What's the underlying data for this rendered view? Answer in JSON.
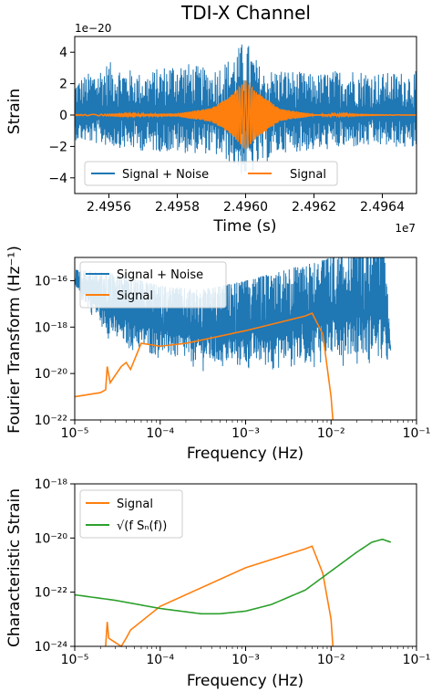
{
  "colors": {
    "blue": "#1f77b4",
    "orange": "#ff7f0e",
    "green": "#2ca02c"
  },
  "chart_data": [
    {
      "type": "line",
      "title": "TDI-X Channel",
      "xlabel": "Time (s)",
      "ylabel": "Strain",
      "x_offset_label": "1e7",
      "y_offset_label": "1e−20",
      "xlim": [
        2.4955,
        2.4965
      ],
      "ylim": [
        -5,
        5
      ],
      "x_ticks": [
        "2.4956",
        "2.4958",
        "2.4960",
        "2.4962",
        "2.4964"
      ],
      "x_tick_values": [
        2.4956,
        2.4958,
        2.496,
        2.4962,
        2.4964
      ],
      "y_ticks": [
        "−4",
        "−2",
        "0",
        "2",
        "4"
      ],
      "y_tick_values": [
        -4,
        -2,
        0,
        2,
        4
      ],
      "legend_position": "lower-center",
      "series": [
        {
          "name": "Signal + Noise",
          "color": "#1f77b4",
          "noise_amplitude": 1.4,
          "peak_range": [
            -4.1,
            4.9
          ],
          "x": [
            2.4955,
            2.4956,
            2.4957,
            2.4958,
            2.4959,
            2.49595,
            2.496,
            2.49605,
            2.4961,
            2.4962,
            2.4963,
            2.4964,
            2.4965
          ],
          "y_max": [
            2.2,
            3.4,
            2.6,
            3.5,
            2.9,
            3.6,
            4.9,
            2.8,
            3.0,
            2.6,
            3.0,
            2.7,
            2.8
          ],
          "y_min": [
            -1.6,
            -2.0,
            -2.3,
            -2.4,
            -2.5,
            -3.0,
            -4.1,
            -3.2,
            -2.4,
            -2.3,
            -2.1,
            -2.0,
            -2.2
          ]
        },
        {
          "name": "Signal",
          "color": "#ff7f0e",
          "x": [
            2.4955,
            2.4958,
            2.4959,
            2.49595,
            2.496,
            2.49603,
            2.4961,
            2.4962,
            2.4965
          ],
          "y_envelope": [
            0.03,
            0.1,
            0.45,
            1.1,
            2.2,
            1.5,
            0.4,
            0.05,
            0.0
          ]
        }
      ]
    },
    {
      "type": "line",
      "xlabel": "Frequency (Hz)",
      "ylabel": "Fourier Transform (Hz⁻¹)",
      "x_scale": "log",
      "y_scale": "log",
      "xlim": [
        1e-05,
        0.1
      ],
      "ylim": [
        1e-22,
        1e-15
      ],
      "x_ticks": [
        "10⁻⁵",
        "10⁻⁴",
        "10⁻³",
        "10⁻²",
        "10⁻¹"
      ],
      "x_tick_values": [
        1e-05,
        0.0001,
        0.001,
        0.01,
        0.1
      ],
      "y_ticks": [
        "10⁻²²",
        "10⁻²⁰",
        "10⁻¹⁸",
        "10⁻¹⁶"
      ],
      "y_tick_values": [
        1e-22,
        1e-20,
        1e-18,
        1e-16
      ],
      "legend_position": "upper-left",
      "series": [
        {
          "name": "Signal + Noise",
          "color": "#1f77b4",
          "x": [
            1e-05,
            3e-05,
            0.0001,
            0.0003,
            0.001,
            0.003,
            0.01,
            0.02,
            0.04,
            0.045,
            0.05
          ],
          "y_top": [
            3e-16,
            2e-16,
            6e-17,
            4e-17,
            1e-16,
            3e-16,
            1e-15,
            3e-15,
            6e-15,
            1e-16,
            1e-19
          ],
          "y_bottom": [
            3e-17,
            1e-19,
            3e-20,
            1e-20,
            8e-21,
            1e-20,
            2e-20,
            2e-20,
            1e-20,
            1e-20,
            1e-19
          ]
        },
        {
          "name": "Signal",
          "color": "#ff7f0e",
          "x": [
            1e-05,
            2e-05,
            2.3e-05,
            2.4e-05,
            2.6e-05,
            3.5e-05,
            4e-05,
            4.5e-05,
            6e-05,
            0.0001,
            0.0002,
            0.001,
            0.005,
            0.006,
            0.008,
            0.01,
            0.0105
          ],
          "y": [
            1e-21,
            1.5e-21,
            2e-21,
            2e-20,
            4e-21,
            2e-20,
            3e-20,
            1.5e-20,
            2e-19,
            1.5e-19,
            2e-19,
            7e-19,
            3e-18,
            4e-18,
            5e-19,
            1e-21,
            1e-22
          ]
        }
      ]
    },
    {
      "type": "line",
      "xlabel": "Frequency (Hz)",
      "ylabel": "Characteristic Strain",
      "x_scale": "log",
      "y_scale": "log",
      "xlim": [
        1e-05,
        0.1
      ],
      "ylim": [
        1e-24,
        1e-18
      ],
      "x_ticks": [
        "10⁻⁵",
        "10⁻⁴",
        "10⁻³",
        "10⁻²",
        "10⁻¹"
      ],
      "x_tick_values": [
        1e-05,
        0.0001,
        0.001,
        0.01,
        0.1
      ],
      "y_ticks": [
        "10⁻²⁴",
        "10⁻²²",
        "10⁻²⁰",
        "10⁻¹⁸"
      ],
      "y_tick_values": [
        1e-24,
        1e-22,
        1e-20,
        1e-18
      ],
      "legend_position": "upper-left",
      "series": [
        {
          "name": "Signal",
          "color": "#ff7f0e",
          "x": [
            2.3e-05,
            2.4e-05,
            2.5e-05,
            3.5e-05,
            4e-05,
            4.5e-05,
            0.0001,
            0.001,
            0.005,
            0.006,
            0.008,
            0.01,
            0.0105
          ],
          "y": [
            1e-24,
            8e-24,
            2e-24,
            1e-24,
            2e-24,
            4e-24,
            3e-23,
            8e-22,
            4e-21,
            5e-21,
            5e-22,
            1e-23,
            1e-24
          ]
        },
        {
          "name": "√(f Sₙ(f))",
          "color": "#2ca02c",
          "x": [
            1e-05,
            3e-05,
            0.0001,
            0.0003,
            0.0005,
            0.001,
            0.002,
            0.005,
            0.01,
            0.02,
            0.03,
            0.04,
            0.05
          ],
          "y": [
            8e-23,
            5e-23,
            2.5e-23,
            1.6e-23,
            1.6e-23,
            2e-23,
            3.5e-23,
            1.2e-22,
            6e-22,
            3e-21,
            7e-21,
            9e-21,
            7e-21
          ]
        }
      ]
    }
  ]
}
